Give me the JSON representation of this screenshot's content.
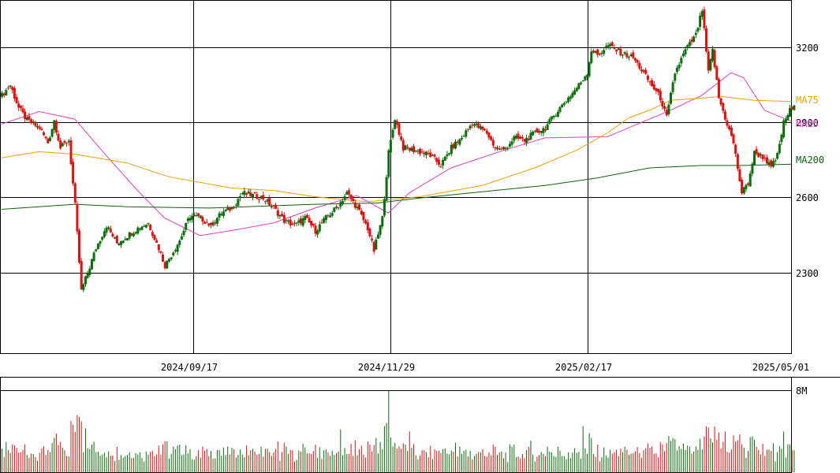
{
  "chart_data": [
    {
      "type": "candlestick",
      "title": "",
      "xlabel": "",
      "ylabel": "",
      "ylim": [
        2200,
        3400
      ],
      "ytick_labels": [
        "3200",
        "2900",
        "2600",
        "2300"
      ],
      "x_tick_labels": [
        "2024/09/17",
        "2024/11/29",
        "2025/02/17",
        "2025/05/01"
      ],
      "grid": true,
      "colors": {
        "up": "#0a6e0a",
        "down": "#e01010",
        "ma25": "#e040c0",
        "ma75": "#f0a000",
        "ma200": "#106010"
      },
      "legend": [
        {
          "name": "MA75",
          "color": "#f0a000"
        },
        {
          "name": "MA25",
          "color": "#e040c0"
        },
        {
          "name": "MA200",
          "color": "#106010"
        }
      ],
      "candles": [],
      "moving_averages": {
        "MA25": {
          "color": "#e040c0",
          "points": [
            [
              0,
              2895
            ],
            [
              18,
              2945
            ],
            [
              35,
              2915
            ],
            [
              50,
              2770
            ],
            [
              65,
              2630
            ],
            [
              78,
              2520
            ],
            [
              95,
              2450
            ],
            [
              110,
              2470
            ],
            [
              130,
              2500
            ],
            [
              150,
              2560
            ],
            [
              170,
              2610
            ],
            [
              185,
              2540
            ],
            [
              195,
              2620
            ],
            [
              215,
              2720
            ],
            [
              240,
              2790
            ],
            [
              260,
              2840
            ],
            [
              290,
              2845
            ],
            [
              320,
              2950
            ],
            [
              335,
              3010
            ],
            [
              349,
              3100
            ],
            [
              355,
              3080
            ],
            [
              365,
              2950
            ],
            [
              378,
              2905
            ]
          ]
        },
        "MA75": {
          "color": "#f0a000",
          "points": [
            [
              0,
              2760
            ],
            [
              18,
              2785
            ],
            [
              35,
              2775
            ],
            [
              60,
              2740
            ],
            [
              80,
              2685
            ],
            [
              110,
              2640
            ],
            [
              130,
              2630
            ],
            [
              150,
              2605
            ],
            [
              175,
              2585
            ],
            [
              200,
              2605
            ],
            [
              230,
              2650
            ],
            [
              255,
              2720
            ],
            [
              275,
              2790
            ],
            [
              290,
              2860
            ],
            [
              300,
              2920
            ],
            [
              310,
              2950
            ],
            [
              320,
              2990
            ],
            [
              345,
              3005
            ],
            [
              360,
              2990
            ],
            [
              378,
              2985
            ]
          ]
        },
        "MA200": {
          "color": "#106010",
          "points": [
            [
              0,
              2555
            ],
            [
              35,
              2575
            ],
            [
              60,
              2565
            ],
            [
              100,
              2560
            ],
            [
              150,
              2575
            ],
            [
              180,
              2580
            ],
            [
              200,
              2600
            ],
            [
              230,
              2625
            ],
            [
              260,
              2650
            ],
            [
              285,
              2680
            ],
            [
              310,
              2720
            ],
            [
              335,
              2730
            ],
            [
              355,
              2730
            ],
            [
              378,
              2735
            ]
          ]
        }
      }
    },
    {
      "type": "bar",
      "title": "",
      "xlabel": "",
      "ylabel": "",
      "ylim": [
        0,
        8000000
      ],
      "ytick_labels": [
        "8M"
      ],
      "values": []
    }
  ]
}
